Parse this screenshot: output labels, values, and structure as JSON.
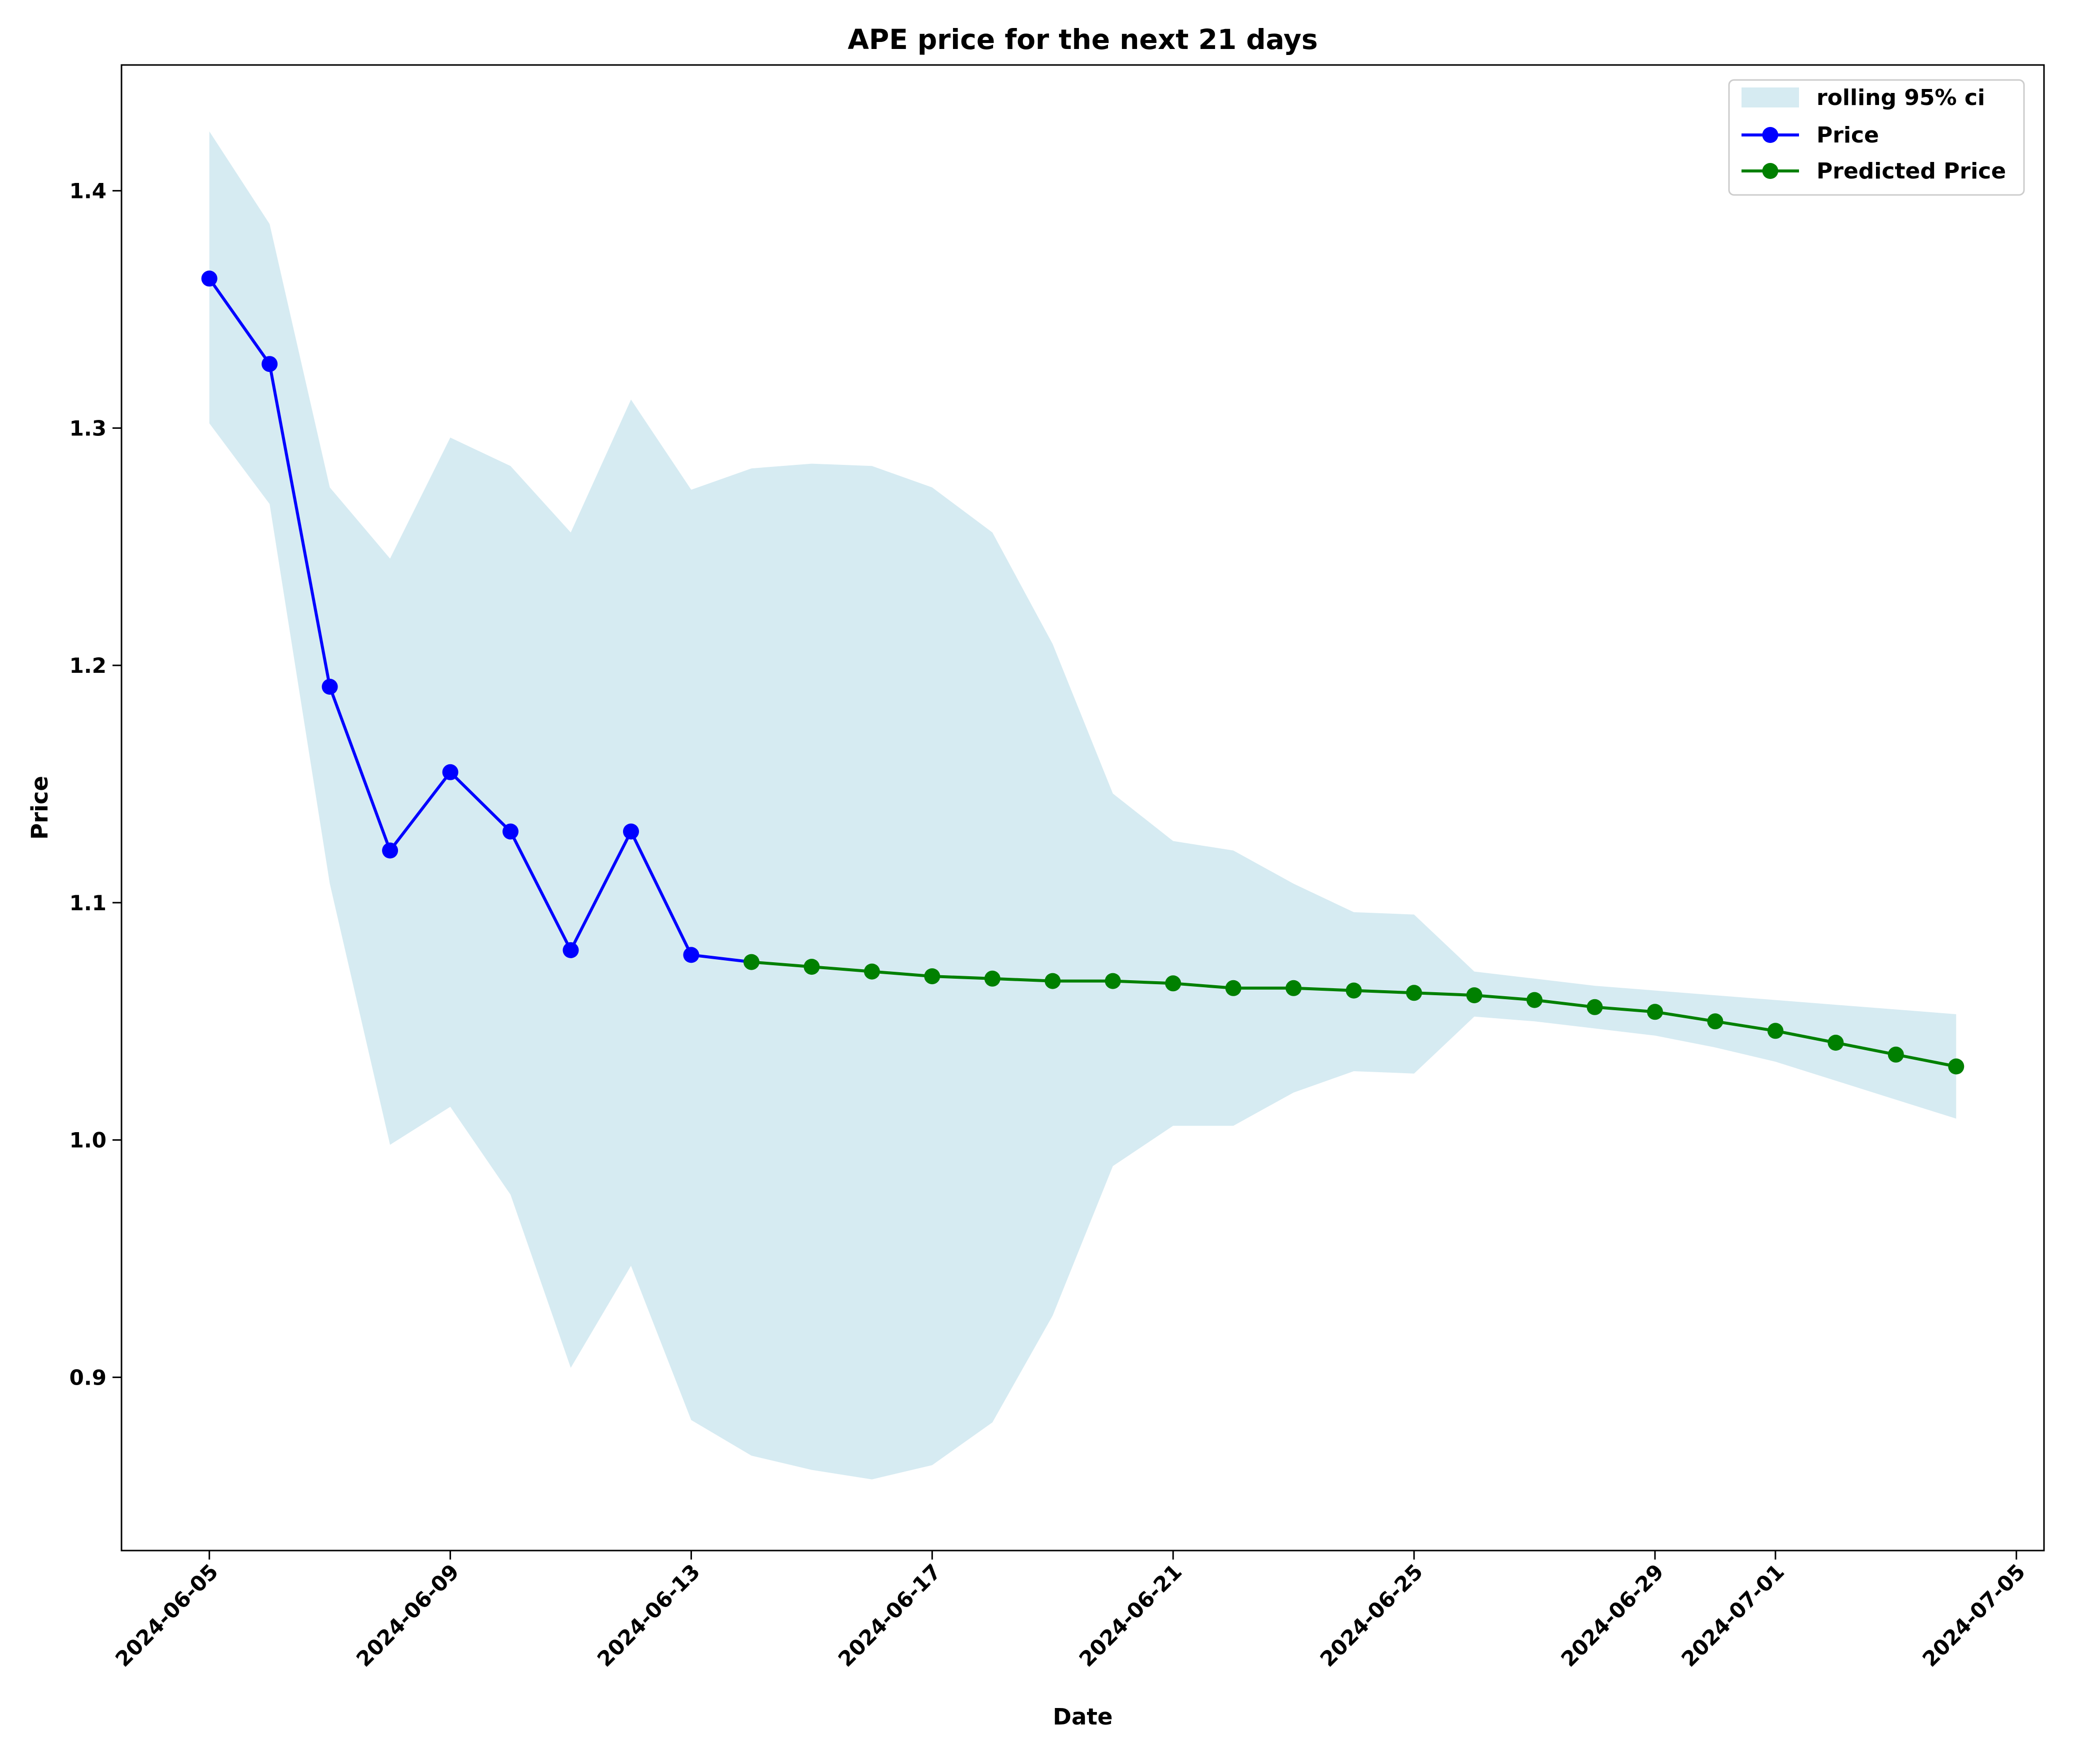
{
  "chart_data": {
    "type": "line",
    "title": "APE price for the next 21 days",
    "xlabel": "Date",
    "ylabel": "Price",
    "xlim": [
      "2024-06-03 13:00",
      "2024-07-05 11:00"
    ],
    "ylim": [
      0.827,
      1.453
    ],
    "x_ticks": [
      "2024-06-05",
      "2024-06-09",
      "2024-06-13",
      "2024-06-17",
      "2024-06-21",
      "2024-06-25",
      "2024-06-29",
      "2024-07-01",
      "2024-07-05"
    ],
    "y_ticks": [
      0.9,
      1.0,
      1.1,
      1.2,
      1.3,
      1.4
    ],
    "grid": false,
    "legend": {
      "placement": "top-right",
      "entries": [
        "rolling 95% ci",
        "Price",
        "Predicted Price"
      ]
    },
    "confidence_band": {
      "name": "rolling 95% ci",
      "color": "#add8e6",
      "x": [
        "2024-06-05",
        "2024-06-06",
        "2024-06-07",
        "2024-06-08",
        "2024-06-09",
        "2024-06-10",
        "2024-06-11",
        "2024-06-12",
        "2024-06-13",
        "2024-06-14",
        "2024-06-15",
        "2024-06-16",
        "2024-06-17",
        "2024-06-18",
        "2024-06-19",
        "2024-06-20",
        "2024-06-21",
        "2024-06-22",
        "2024-06-23",
        "2024-06-24",
        "2024-06-25",
        "2024-06-26",
        "2024-06-27",
        "2024-06-28",
        "2024-06-29",
        "2024-06-30",
        "2024-07-01",
        "2024-07-02",
        "2024-07-03",
        "2024-07-04"
      ],
      "upper": [
        1.425,
        1.386,
        1.275,
        1.245,
        1.296,
        1.284,
        1.256,
        1.312,
        1.274,
        1.283,
        1.285,
        1.284,
        1.275,
        1.256,
        1.209,
        1.146,
        1.126,
        1.122,
        1.108,
        1.096,
        1.095,
        1.071,
        1.068,
        1.065,
        1.063,
        1.061,
        1.059,
        1.057,
        1.055,
        1.053
      ],
      "lower": [
        1.302,
        1.268,
        1.108,
        0.998,
        1.014,
        0.977,
        0.904,
        0.947,
        0.882,
        0.867,
        0.861,
        0.857,
        0.863,
        0.881,
        0.926,
        0.989,
        1.006,
        1.006,
        1.02,
        1.029,
        1.028,
        1.052,
        1.05,
        1.047,
        1.044,
        1.039,
        1.033,
        1.025,
        1.017,
        1.009
      ]
    },
    "series": [
      {
        "name": "Price",
        "color": "#0000ff",
        "x": [
          "2024-06-05",
          "2024-06-06",
          "2024-06-07",
          "2024-06-08",
          "2024-06-09",
          "2024-06-10",
          "2024-06-11",
          "2024-06-12",
          "2024-06-13",
          "2024-06-14"
        ],
        "values": [
          1.363,
          1.327,
          1.191,
          1.122,
          1.155,
          1.13,
          1.08,
          1.13,
          1.078,
          1.075
        ],
        "markers_on": [
          0,
          1,
          2,
          3,
          4,
          5,
          6,
          7,
          8
        ]
      },
      {
        "name": "Predicted Price",
        "color": "#008000",
        "x": [
          "2024-06-14",
          "2024-06-15",
          "2024-06-16",
          "2024-06-17",
          "2024-06-18",
          "2024-06-19",
          "2024-06-20",
          "2024-06-21",
          "2024-06-22",
          "2024-06-23",
          "2024-06-24",
          "2024-06-25",
          "2024-06-26",
          "2024-06-27",
          "2024-06-28",
          "2024-06-29",
          "2024-06-30",
          "2024-07-01",
          "2024-07-02",
          "2024-07-03",
          "2024-07-04"
        ],
        "values": [
          1.075,
          1.073,
          1.071,
          1.069,
          1.068,
          1.067,
          1.067,
          1.066,
          1.064,
          1.064,
          1.063,
          1.062,
          1.061,
          1.059,
          1.056,
          1.054,
          1.05,
          1.046,
          1.041,
          1.036,
          1.031
        ],
        "markers_on": [
          0,
          1,
          2,
          3,
          4,
          5,
          6,
          7,
          8,
          9,
          10,
          11,
          12,
          13,
          14,
          15,
          16,
          17,
          18,
          19,
          20
        ]
      }
    ]
  }
}
